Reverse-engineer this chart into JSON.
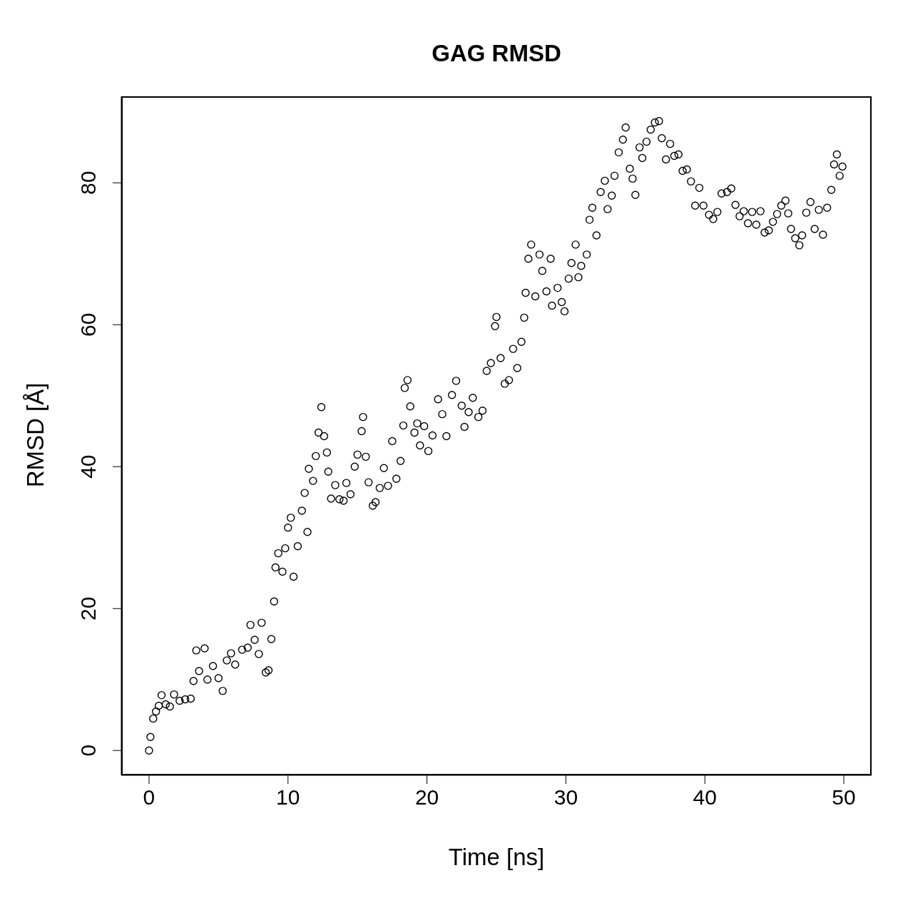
{
  "chart_data": {
    "type": "scatter",
    "title": "GAG RMSD",
    "xlabel": "Time [ns]",
    "ylabel": "RMSD [Å]",
    "xlim": [
      -2,
      52
    ],
    "ylim": [
      -3.5,
      92.2
    ],
    "xticks": [
      0,
      10,
      20,
      30,
      40,
      50
    ],
    "yticks": [
      0,
      20,
      40,
      60,
      80
    ],
    "grid": false,
    "legend": false,
    "marker": "circle",
    "series": [
      {
        "color": "#000000",
        "x": [
          0,
          0.1,
          0.3,
          0.5,
          0.7,
          0.9,
          1.2,
          1.5,
          1.8,
          2.2,
          2.6,
          3.0,
          3.2,
          3.4,
          3.6,
          4.0,
          4.2,
          4.6,
          5.0,
          5.3,
          5.6,
          5.9,
          6.2,
          6.7,
          7.1,
          7.3,
          7.6,
          7.9,
          8.1,
          8.4,
          8.6,
          8.8,
          9.0,
          9.1,
          9.3,
          9.6,
          9.8,
          10.0,
          10.2,
          10.4,
          10.7,
          11.0,
          11.2,
          11.4,
          11.5,
          11.8,
          12.0,
          12.2,
          12.4,
          12.6,
          12.8,
          12.9,
          13.1,
          13.4,
          13.7,
          14.0,
          14.2,
          14.5,
          14.8,
          15.0,
          15.3,
          15.4,
          15.6,
          15.8,
          16.1,
          16.3,
          16.6,
          16.9,
          17.2,
          17.5,
          17.8,
          18.1,
          18.3,
          18.4,
          18.6,
          18.8,
          19.1,
          19.3,
          19.5,
          19.8,
          20.1,
          20.4,
          20.8,
          21.1,
          21.4,
          21.8,
          22.1,
          22.5,
          22.7,
          23.0,
          23.3,
          23.7,
          24.0,
          24.3,
          24.6,
          24.9,
          25.0,
          25.3,
          25.6,
          25.9,
          26.2,
          26.5,
          26.8,
          27.0,
          27.1,
          27.3,
          27.5,
          27.8,
          28.1,
          28.3,
          28.6,
          28.9,
          29.0,
          29.4,
          29.7,
          29.9,
          30.2,
          30.4,
          30.7,
          30.9,
          31.1,
          31.5,
          31.7,
          31.9,
          32.2,
          32.5,
          32.8,
          33.0,
          33.3,
          33.5,
          33.8,
          34.1,
          34.3,
          34.6,
          34.8,
          35.0,
          35.3,
          35.5,
          35.8,
          36.1,
          36.4,
          36.7,
          36.9,
          37.2,
          37.5,
          37.8,
          38.1,
          38.4,
          38.7,
          39.0,
          39.3,
          39.6,
          39.9,
          40.3,
          40.6,
          40.9,
          41.2,
          41.6,
          41.9,
          42.2,
          42.5,
          42.8,
          43.1,
          43.4,
          43.7,
          44.0,
          44.3,
          44.6,
          44.9,
          45.2,
          45.5,
          45.8,
          46.0,
          46.2,
          46.5,
          46.8,
          47.0,
          47.3,
          47.6,
          47.9,
          48.2,
          48.5,
          48.8,
          49.1,
          49.3,
          49.5,
          49.7,
          49.9
        ],
        "values": [
          0,
          1.9,
          4.5,
          5.5,
          6.3,
          7.8,
          6.5,
          6.2,
          7.9,
          7.0,
          7.2,
          7.3,
          9.8,
          14.1,
          11.2,
          14.4,
          10.0,
          11.9,
          10.2,
          8.4,
          12.7,
          13.7,
          12.1,
          14.2,
          14.5,
          17.7,
          15.6,
          13.6,
          18.0,
          11.0,
          11.3,
          15.7,
          21.0,
          25.8,
          27.8,
          25.2,
          28.5,
          31.4,
          32.8,
          24.5,
          28.8,
          33.8,
          36.3,
          30.8,
          39.7,
          38.0,
          41.5,
          44.8,
          48.4,
          44.3,
          42.0,
          39.3,
          35.5,
          37.4,
          35.4,
          35.2,
          37.7,
          36.1,
          40.0,
          41.7,
          45.0,
          47.0,
          41.4,
          37.8,
          34.5,
          35.0,
          37.0,
          39.8,
          37.3,
          43.6,
          38.3,
          40.8,
          45.8,
          51.1,
          52.2,
          48.5,
          44.8,
          46.1,
          43.0,
          45.7,
          42.2,
          44.4,
          49.5,
          47.4,
          44.3,
          50.1,
          52.1,
          48.6,
          45.6,
          47.7,
          49.7,
          47.0,
          47.9,
          53.5,
          54.6,
          59.8,
          61.1,
          55.3,
          51.7,
          52.2,
          56.6,
          53.9,
          57.6,
          61.0,
          64.5,
          69.3,
          71.3,
          64.0,
          69.9,
          67.6,
          64.7,
          69.3,
          62.7,
          65.2,
          63.2,
          61.9,
          66.5,
          68.7,
          71.3,
          66.7,
          68.3,
          69.9,
          74.8,
          76.5,
          72.6,
          78.7,
          80.3,
          76.3,
          78.2,
          81.0,
          84.3,
          86.1,
          87.8,
          82.0,
          80.6,
          78.3,
          85.0,
          83.5,
          85.8,
          87.5,
          88.5,
          88.7,
          86.3,
          83.3,
          85.5,
          83.8,
          84.0,
          81.7,
          81.9,
          80.2,
          76.8,
          79.3,
          76.8,
          75.5,
          74.9,
          75.9,
          78.5,
          78.7,
          79.2,
          76.9,
          75.3,
          76.0,
          74.3,
          75.9,
          74.1,
          76.0,
          73.0,
          73.3,
          74.5,
          75.6,
          76.8,
          77.5,
          75.7,
          73.5,
          72.2,
          71.2,
          72.6,
          75.8,
          77.3,
          73.5,
          76.2,
          72.7,
          76.5,
          79.0,
          82.6,
          84.0,
          81.0,
          82.3
        ]
      }
    ]
  }
}
